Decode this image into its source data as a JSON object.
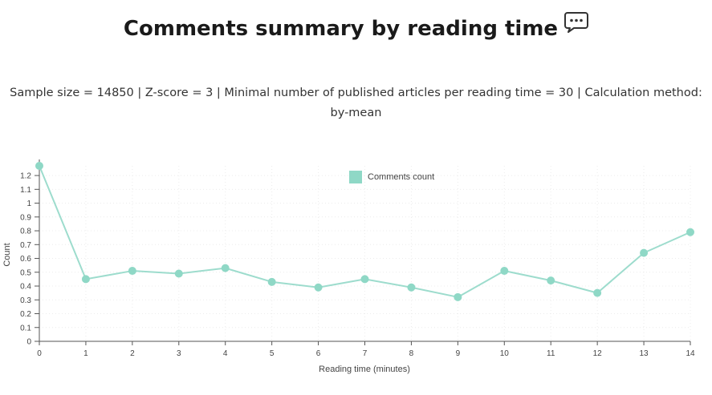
{
  "title": "Comments summary by reading time",
  "title_icon": "speech-bubble-icon",
  "subtitle": "Sample size = 14850 | Z-score = 3 | Minimal number of published articles per reading time = 30 | Calculation method: by-mean",
  "colors": {
    "series": "#9ddccd",
    "series_point": "#8fd8c6",
    "grid": "#ececec",
    "axis": "#555555"
  },
  "chart_data": {
    "type": "line",
    "x": [
      0,
      1,
      2,
      3,
      4,
      5,
      6,
      7,
      8,
      9,
      10,
      11,
      12,
      13,
      14
    ],
    "series": [
      {
        "name": "Comments count",
        "values": [
          1.27,
          0.45,
          0.51,
          0.49,
          0.53,
          0.43,
          0.39,
          0.45,
          0.39,
          0.32,
          0.51,
          0.44,
          0.35,
          0.64,
          0.79
        ]
      }
    ],
    "xlabel": "Reading time (minutes)",
    "ylabel": "Count",
    "xlim": [
      0,
      14
    ],
    "ylim": [
      0,
      1.27
    ],
    "y_ticks": [
      "0",
      "0.1",
      "0.2",
      "0.3",
      "0.4",
      "0.5",
      "0.6",
      "0.7",
      "0.8",
      "0.9",
      "1",
      "1.1",
      "1.2"
    ],
    "x_ticks": [
      "0",
      "1",
      "2",
      "3",
      "4",
      "5",
      "6",
      "7",
      "8",
      "9",
      "10",
      "11",
      "12",
      "13",
      "14"
    ],
    "grid": true,
    "legend_position": "top-center"
  }
}
